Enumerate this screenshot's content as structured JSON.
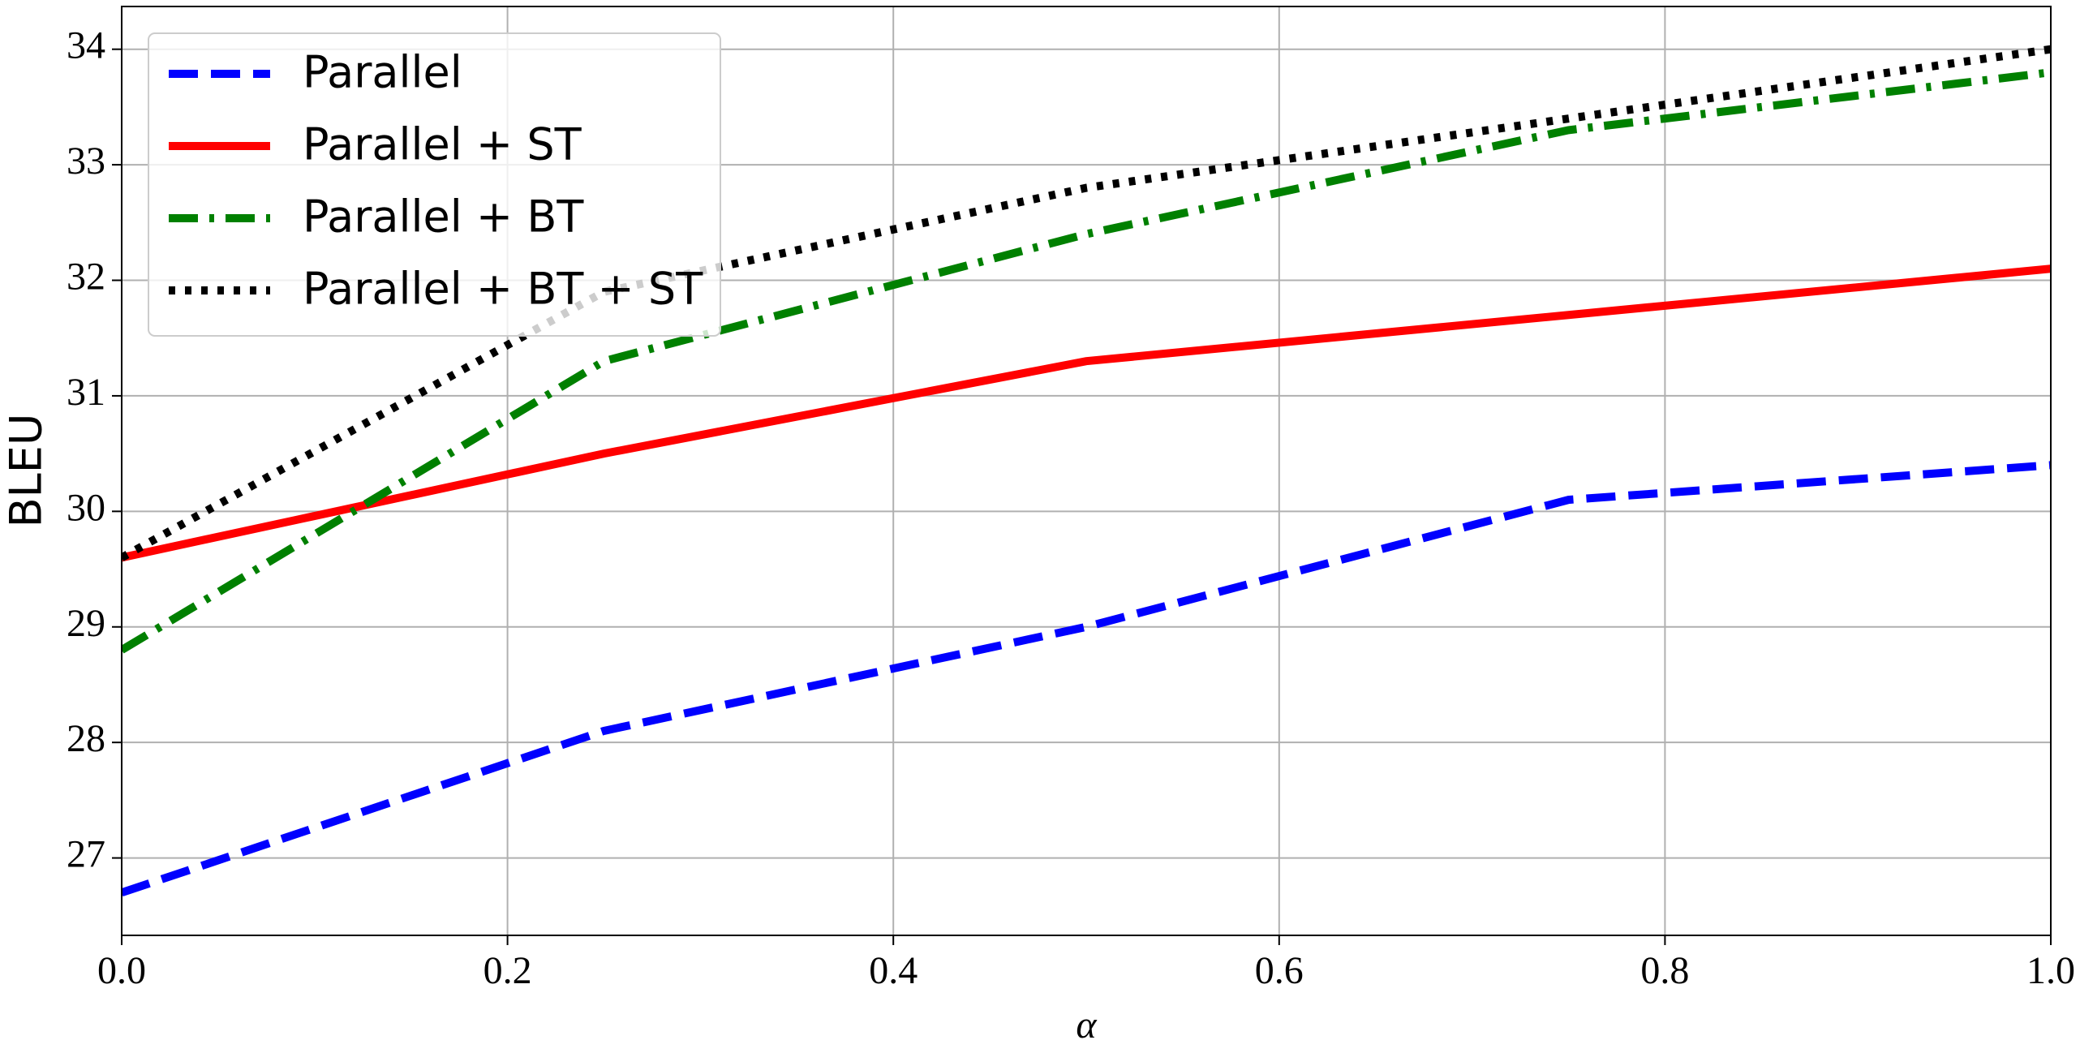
{
  "chart_data": {
    "type": "line",
    "x_label": "α",
    "y_label": "BLEU",
    "x": [
      0,
      0.25,
      0.5,
      0.75,
      1.0
    ],
    "series": [
      {
        "name": "Parallel",
        "color": "#0000ff",
        "linestyle": "dashed",
        "values": [
          26.7,
          28.1,
          29.0,
          30.1,
          30.4
        ]
      },
      {
        "name": "Parallel + ST",
        "color": "#ff0000",
        "linestyle": "solid",
        "values": [
          29.6,
          30.5,
          31.3,
          31.7,
          32.1
        ]
      },
      {
        "name": "Parallel + BT",
        "color": "#008000",
        "linestyle": "dashdot",
        "values": [
          28.8,
          31.3,
          32.4,
          33.3,
          33.8
        ]
      },
      {
        "name": "Parallel + BT + ST",
        "color": "#000000",
        "linestyle": "dotted",
        "values": [
          29.6,
          31.9,
          32.8,
          33.4,
          34.0
        ]
      }
    ],
    "xlim": [
      0,
      1
    ],
    "xticks": [
      {
        "value": 0,
        "label": "0.0"
      },
      0.2,
      0.4,
      0.6,
      0.8,
      {
        "value": 1,
        "label": "1.0"
      }
    ],
    "ylim": [
      26.33,
      34.37
    ],
    "yticks": [
      27,
      28,
      29,
      30,
      31,
      32,
      33,
      34
    ],
    "grid": true,
    "legend": "upper left"
  }
}
